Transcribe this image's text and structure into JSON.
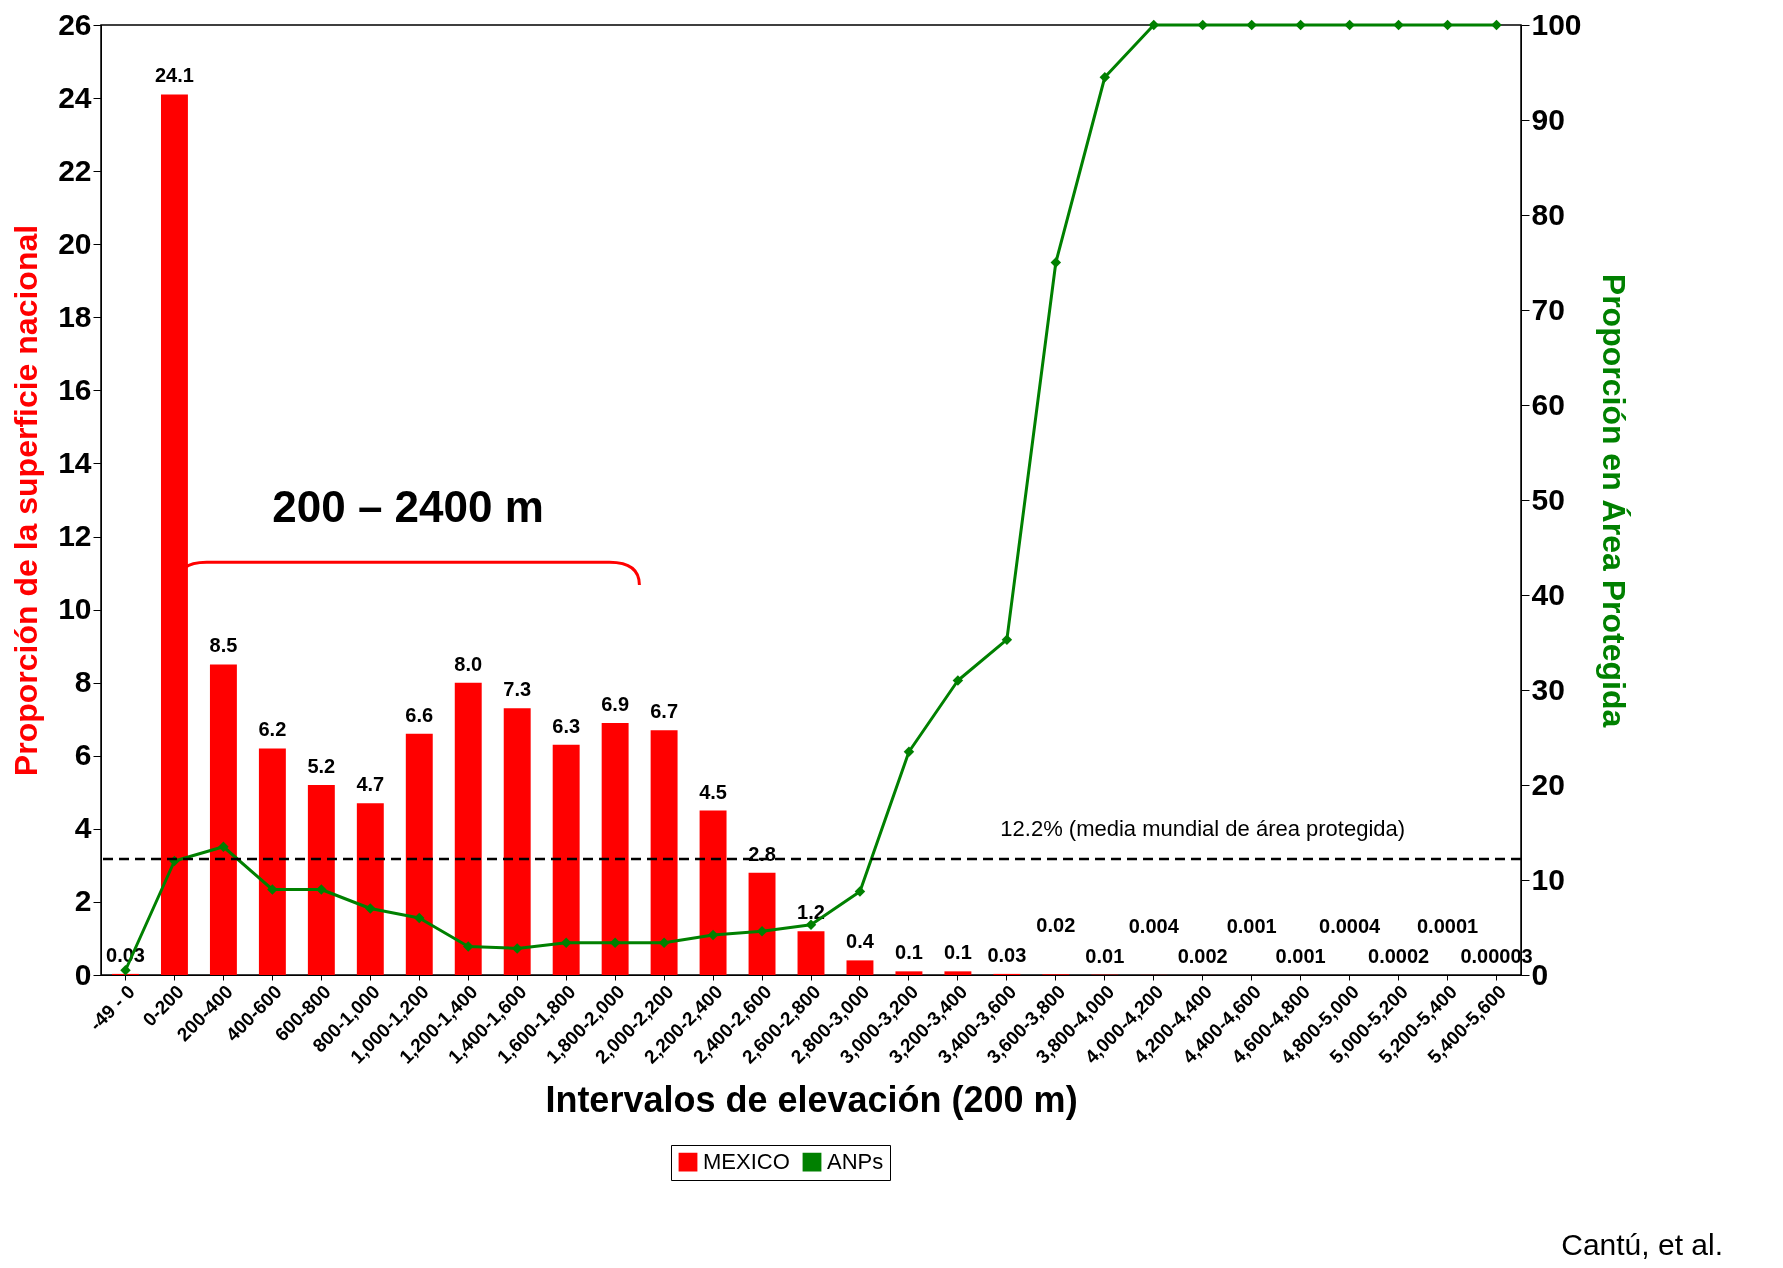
{
  "chart_data": {
    "type": "bar",
    "xlabel": "Intervalos de elevación (200 m)",
    "ylabel": "Proporción de la superficie nacional",
    "y2label": "Proporción en Área Protegida",
    "categories": [
      "-49 - 0",
      "0-200",
      "200-400",
      "400-600",
      "600-800",
      "800-1,000",
      "1,000-1,200",
      "1,200-1,400",
      "1,400-1,600",
      "1,600-1,800",
      "1,800-2,000",
      "2,000-2,200",
      "2,200-2,400",
      "2,400-2,600",
      "2,600-2,800",
      "2,800-3,000",
      "3,000-3,200",
      "3,200-3,400",
      "3,400-3,600",
      "3,600-3,800",
      "3,800-4,000",
      "4,000-4,200",
      "4,200-4,400",
      "4,400-4,600",
      "4,600-4,800",
      "4,800-5,000",
      "5,000-5,200",
      "5,200-5,400",
      "5,400-5,600"
    ],
    "series": [
      {
        "name": "MEXICO",
        "color": "#ff0000",
        "values": [
          0.03,
          24.1,
          8.5,
          6.2,
          5.2,
          4.7,
          6.6,
          8.0,
          7.3,
          6.3,
          6.9,
          6.7,
          4.5,
          2.8,
          1.2,
          0.4,
          0.1,
          0.1,
          0.03,
          0.02,
          0.01,
          0.004,
          0.002,
          0.001,
          0.001,
          0.0004,
          0.0002,
          0.0001,
          3e-05
        ],
        "value_labels": [
          "0.03",
          "24.1",
          "8.5",
          "6.2",
          "5.2",
          "4.7",
          "6.6",
          "8.0",
          "7.3",
          "6.3",
          "6.9",
          "6.7",
          "4.5",
          "2.8",
          "1.2",
          "0.4",
          "0.1",
          "0.1",
          "0.03",
          "0.02",
          "0.01",
          "0.004",
          "0.002",
          "0.001",
          "0.001",
          "0.0004",
          "0.0002",
          "0.0001",
          "0.00003"
        ]
      },
      {
        "name": "ANPs",
        "type": "line",
        "axis": "y2",
        "color": "#008000",
        "marker": "diamond",
        "values": [
          0.5,
          12,
          13.5,
          9,
          9,
          7,
          6,
          3,
          2.8,
          3.4,
          3.4,
          3.4,
          4.2,
          4.6,
          5.3,
          8.8,
          23.5,
          31,
          35.3,
          75,
          94.5,
          100,
          100,
          100,
          100,
          100,
          100,
          100,
          100
        ]
      }
    ],
    "ylim": [
      0,
      26
    ],
    "yticks": [
      0,
      2,
      4,
      6,
      8,
      10,
      12,
      14,
      16,
      18,
      20,
      22,
      24,
      26
    ],
    "y2lim": [
      0,
      100
    ],
    "y2ticks": [
      0,
      10,
      20,
      30,
      40,
      50,
      60,
      70,
      80,
      90,
      100
    ],
    "ref_lines": [
      {
        "axis": "y2",
        "value": 12.2,
        "label": "12.2% (media mundial de área protegida)",
        "color": "#000000",
        "line_style": "dashed"
      }
    ],
    "annotations": [
      "200 – 2400 m",
      "Cantú, et al."
    ],
    "legend": "bottom",
    "grid": false
  }
}
